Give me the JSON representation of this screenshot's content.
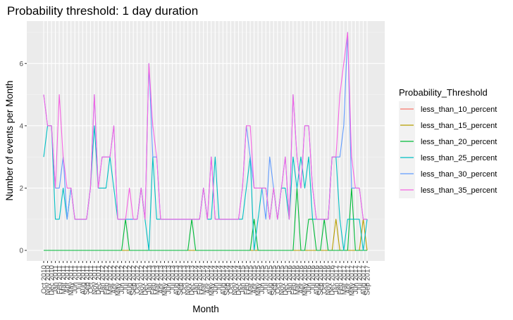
{
  "chart_data": {
    "type": "line",
    "title": "Probability threshold: 1 day duration",
    "xlabel": "Month",
    "ylabel": "Number of events per Month",
    "ylim": [
      0,
      7
    ],
    "grid": true,
    "legend_position": "right",
    "legend_title": "Probability_Threshold",
    "y_ticks": [
      0,
      2,
      4,
      6
    ],
    "x": [
      "Oct 2010",
      "Nov 2010",
      "Dec 2010",
      "Jan 2011",
      "Feb 2011",
      "Mar 2011",
      "Apr 2011",
      "May 2011",
      "Jun 2011",
      "Jul 2011",
      "Aug 2011",
      "Sep 2011",
      "Oct 2011",
      "Nov 2011",
      "Dec 2011",
      "Jan 2012",
      "Feb 2012",
      "Mar 2012",
      "Apr 2012",
      "May 2012",
      "Jun 2012",
      "Jul 2012",
      "Aug 2012",
      "Sep 2012",
      "Oct 2012",
      "Nov 2012",
      "Dec 2012",
      "Jan 2013",
      "Feb 2013",
      "Mar 2013",
      "Apr 2013",
      "May 2013",
      "Jun 2013",
      "Jul 2013",
      "Aug 2013",
      "Sep 2013",
      "Oct 2013",
      "Nov 2013",
      "Dec 2013",
      "Jan 2014",
      "Feb 2014",
      "Mar 2014",
      "Apr 2014",
      "May 2014",
      "Jun 2014",
      "Jul 2014",
      "Aug 2014",
      "Sep 2014",
      "Oct 2014",
      "Nov 2014",
      "Dec 2014",
      "Jan 2015",
      "Feb 2015",
      "Mar 2015",
      "Apr 2015",
      "May 2015",
      "Jun 2015",
      "Jul 2015",
      "Aug 2015",
      "Sep 2015",
      "Oct 2015",
      "Nov 2015",
      "Dec 2015",
      "Jan 2016",
      "Feb 2016",
      "Mar 2016",
      "Apr 2016",
      "May 2016",
      "Jun 2016",
      "Jul 2016",
      "Aug 2016",
      "Sep 2016",
      "Oct 2016",
      "Nov 2016",
      "Dec 2016",
      "Jan 2017",
      "Feb 2017",
      "Mar 2017",
      "Apr 2017",
      "May 2017",
      "Jun 2017",
      "Jul 2017",
      "Aug 2017",
      "Sep 2017"
    ],
    "series": [
      {
        "name": "less_than_10_percent",
        "color": "#F8766D",
        "values": [
          0,
          0,
          0,
          0,
          0,
          0,
          0,
          0,
          0,
          0,
          0,
          0,
          0,
          0,
          0,
          0,
          0,
          0,
          0,
          0,
          0,
          0,
          0,
          0,
          0,
          0,
          0,
          0,
          0,
          0,
          0,
          0,
          0,
          0,
          0,
          0,
          0,
          0,
          0,
          0,
          0,
          0,
          0,
          0,
          0,
          0,
          0,
          0,
          0,
          0,
          0,
          0,
          0,
          0,
          0,
          0,
          0,
          0,
          0,
          0,
          0,
          0,
          0,
          0,
          0,
          0,
          0,
          0,
          0,
          0,
          0,
          0,
          0,
          0,
          0,
          0,
          0,
          0,
          0,
          0,
          0,
          0,
          0,
          0
        ]
      },
      {
        "name": "less_than_15_percent",
        "color": "#B79F00",
        "values": [
          0,
          0,
          0,
          0,
          0,
          0,
          0,
          0,
          0,
          0,
          0,
          0,
          0,
          0,
          0,
          0,
          0,
          0,
          0,
          0,
          0,
          0,
          0,
          0,
          0,
          0,
          0,
          0,
          0,
          0,
          0,
          0,
          0,
          0,
          0,
          0,
          0,
          0,
          0,
          0,
          0,
          0,
          0,
          0,
          0,
          0,
          0,
          0,
          0,
          0,
          0,
          0,
          0,
          0,
          0,
          0,
          0,
          0,
          0,
          0,
          0,
          0,
          0,
          0,
          0,
          0,
          0,
          0,
          0,
          0,
          0,
          0,
          0,
          0,
          0,
          1,
          0,
          0,
          0,
          0,
          0,
          0,
          1,
          0
        ]
      },
      {
        "name": "less_than_20_percent",
        "color": "#00BA38",
        "values": [
          0,
          0,
          0,
          0,
          0,
          0,
          0,
          0,
          0,
          0,
          0,
          0,
          0,
          0,
          0,
          0,
          0,
          0,
          0,
          0,
          0,
          1,
          0,
          0,
          0,
          0,
          0,
          0,
          0,
          0,
          0,
          0,
          0,
          0,
          0,
          0,
          0,
          0,
          1,
          0,
          0,
          0,
          0,
          0,
          0,
          0,
          0,
          0,
          0,
          0,
          0,
          0,
          0,
          0,
          1,
          0,
          0,
          0,
          0,
          0,
          0,
          0,
          0,
          0,
          0,
          2,
          0,
          0,
          1,
          1,
          0,
          0,
          1,
          0,
          0,
          0,
          0,
          0,
          0,
          2,
          0,
          0,
          0,
          0
        ]
      },
      {
        "name": "less_than_25_percent",
        "color": "#00BFC4",
        "values": [
          3,
          4,
          4,
          1,
          1,
          2,
          1,
          2,
          1,
          1,
          1,
          1,
          2,
          4,
          2,
          2,
          2,
          3,
          2,
          1,
          1,
          1,
          1,
          1,
          1,
          2,
          1,
          0,
          3,
          1,
          1,
          1,
          1,
          1,
          1,
          1,
          1,
          1,
          1,
          1,
          1,
          2,
          1,
          1,
          3,
          1,
          1,
          1,
          1,
          1,
          1,
          1,
          2,
          3,
          0,
          1,
          2,
          2,
          1,
          2,
          1,
          2,
          2,
          1,
          3,
          2,
          3,
          2,
          3,
          1,
          1,
          1,
          1,
          1,
          3,
          3,
          1,
          0,
          1,
          1,
          1,
          1,
          0,
          1
        ]
      },
      {
        "name": "less_than_30_percent",
        "color": "#619CFF",
        "values": [
          5,
          4,
          4,
          2,
          2,
          3,
          1,
          2,
          1,
          1,
          1,
          1,
          2,
          5,
          2,
          3,
          3,
          3,
          4,
          1,
          1,
          1,
          1,
          1,
          1,
          2,
          1,
          6,
          3,
          3,
          1,
          1,
          1,
          1,
          1,
          1,
          1,
          1,
          1,
          1,
          1,
          2,
          1,
          3,
          1,
          1,
          1,
          1,
          1,
          1,
          1,
          2,
          4,
          3,
          2,
          2,
          2,
          1,
          3,
          2,
          1,
          2,
          3,
          1,
          5,
          3,
          2,
          4,
          4,
          2,
          1,
          1,
          1,
          1,
          3,
          3,
          3,
          4,
          7,
          2,
          2,
          2,
          1,
          1
        ]
      },
      {
        "name": "less_than_35_percent",
        "color": "#F564E3",
        "values": [
          5,
          4,
          4,
          2,
          5,
          3,
          2,
          2,
          1,
          1,
          1,
          1,
          2,
          5,
          2,
          3,
          3,
          3,
          4,
          1,
          1,
          1,
          2,
          1,
          1,
          2,
          1,
          6,
          4,
          3,
          1,
          1,
          1,
          1,
          1,
          1,
          1,
          1,
          1,
          1,
          1,
          2,
          1,
          3,
          1,
          1,
          1,
          1,
          1,
          1,
          1,
          2,
          4,
          4,
          2,
          2,
          2,
          2,
          1,
          2,
          1,
          2,
          3,
          1,
          5,
          3,
          2,
          4,
          4,
          2,
          1,
          1,
          1,
          1,
          3,
          3,
          5,
          6,
          7,
          3,
          2,
          2,
          1,
          1
        ]
      }
    ]
  }
}
